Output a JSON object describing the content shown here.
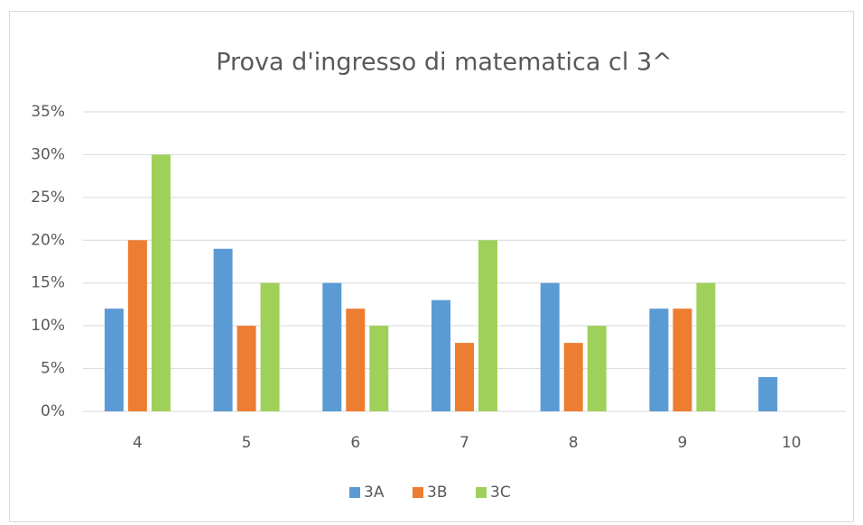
{
  "chart_data": {
    "type": "bar",
    "title": "Prova d'ingresso  di  matematica cl 3^",
    "categories": [
      "4",
      "5",
      "6",
      "7",
      "8",
      "9",
      "10"
    ],
    "series": [
      {
        "name": "3A",
        "color": "#5b9bd5",
        "values": [
          12,
          19,
          15,
          13,
          15,
          12,
          4
        ]
      },
      {
        "name": "3B",
        "color": "#ed7d31",
        "values": [
          20,
          10,
          12,
          8,
          8,
          12,
          0
        ]
      },
      {
        "name": "3C",
        "color": "#9fd05a",
        "values": [
          30,
          15,
          10,
          20,
          10,
          15,
          0
        ]
      }
    ],
    "ylim": [
      0,
      35
    ],
    "yticks": [
      {
        "value": 0,
        "label": "0%"
      },
      {
        "value": 5,
        "label": "5%"
      },
      {
        "value": 10,
        "label": "10%"
      },
      {
        "value": 15,
        "label": "15%"
      },
      {
        "value": 20,
        "label": "20%"
      },
      {
        "value": 25,
        "label": "25%"
      },
      {
        "value": 30,
        "label": "30%"
      },
      {
        "value": 35,
        "label": "35%"
      }
    ],
    "grid": true,
    "legend": "bottom"
  }
}
